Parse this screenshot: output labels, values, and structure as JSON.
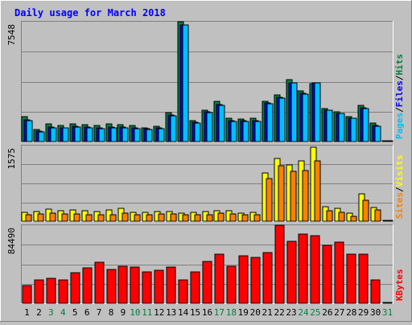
{
  "title": "Daily usage for March 2018",
  "chart_data": [
    {
      "type": "bar",
      "panel": "pages-files-hits",
      "categories": [
        "1",
        "2",
        "3",
        "4",
        "5",
        "6",
        "7",
        "8",
        "9",
        "10",
        "11",
        "12",
        "13",
        "14",
        "15",
        "16",
        "17",
        "18",
        "19",
        "20",
        "21",
        "22",
        "23",
        "24",
        "25",
        "26",
        "27",
        "28",
        "29",
        "30",
        "31"
      ],
      "weekend_categories": [
        "3",
        "4",
        "10",
        "11",
        "17",
        "18",
        "24",
        "25",
        "31"
      ],
      "y_max_label": "7548",
      "ylim": [
        0,
        7548
      ],
      "series": [
        {
          "name": "Hits",
          "color": "#008040",
          "values": [
            1560,
            780,
            1100,
            1010,
            1130,
            1060,
            1030,
            1090,
            1070,
            990,
            870,
            980,
            1820,
            7548,
            1330,
            1980,
            2520,
            1450,
            1420,
            1470,
            2520,
            2960,
            3900,
            3200,
            3640,
            2080,
            1870,
            1560,
            2280,
            1170,
            60
          ]
        },
        {
          "name": "Files",
          "color": "#0000ff",
          "values": [
            1380,
            640,
            930,
            880,
            970,
            910,
            880,
            930,
            910,
            850,
            800,
            860,
            1680,
            7340,
            1230,
            1870,
            2340,
            1300,
            1300,
            1300,
            2420,
            2780,
            3720,
            3040,
            3700,
            2000,
            1790,
            1480,
            2140,
            1010,
            50
          ]
        },
        {
          "name": "Pages",
          "color": "#00c0ff",
          "values": [
            1300,
            600,
            880,
            840,
            920,
            860,
            830,
            880,
            860,
            810,
            760,
            820,
            1620,
            7340,
            1180,
            1810,
            2300,
            1260,
            1250,
            1260,
            2380,
            2740,
            3680,
            3000,
            3700,
            1970,
            1760,
            1450,
            2100,
            980,
            40
          ]
        }
      ],
      "legend": [
        "Pages",
        "Files",
        "Hits"
      ],
      "legend_colors": [
        "#00c0ff",
        "#0000ff",
        "#008040"
      ]
    },
    {
      "type": "bar",
      "panel": "sites-visits",
      "y_max_label": "1575",
      "ylim": [
        0,
        1575
      ],
      "series": [
        {
          "name": "Visits",
          "color": "#ffff00",
          "values": [
            180,
            200,
            250,
            210,
            240,
            210,
            200,
            230,
            260,
            180,
            180,
            200,
            200,
            170,
            190,
            200,
            220,
            210,
            170,
            190,
            1000,
            1300,
            1180,
            1260,
            1540,
            300,
            270,
            160,
            570,
            290,
            0
          ]
        },
        {
          "name": "Sites",
          "color": "#ff8000",
          "values": [
            140,
            150,
            160,
            150,
            150,
            140,
            140,
            140,
            160,
            140,
            140,
            150,
            150,
            140,
            140,
            140,
            160,
            150,
            140,
            140,
            880,
            1160,
            1040,
            1050,
            1250,
            220,
            180,
            100,
            430,
            240,
            0
          ]
        }
      ],
      "legend": [
        "Sites",
        "Visits"
      ],
      "legend_colors": [
        "#ff8000",
        "#ffff00"
      ]
    },
    {
      "type": "bar",
      "panel": "kbytes",
      "y_max_label": "84490",
      "ylim": [
        0,
        84490
      ],
      "series": [
        {
          "name": "KBytes",
          "color": "#ff0000",
          "values": [
            19500,
            25000,
            27000,
            25000,
            33000,
            38000,
            44000,
            37000,
            40000,
            39500,
            34000,
            36000,
            39000,
            25000,
            34000,
            45000,
            53000,
            40000,
            51000,
            50000,
            55000,
            84490,
            67000,
            75000,
            73000,
            63000,
            66000,
            53000,
            53000,
            25000,
            1000
          ]
        }
      ],
      "legend": [
        "KBytes"
      ],
      "legend_colors": [
        "#ff0000"
      ]
    }
  ]
}
